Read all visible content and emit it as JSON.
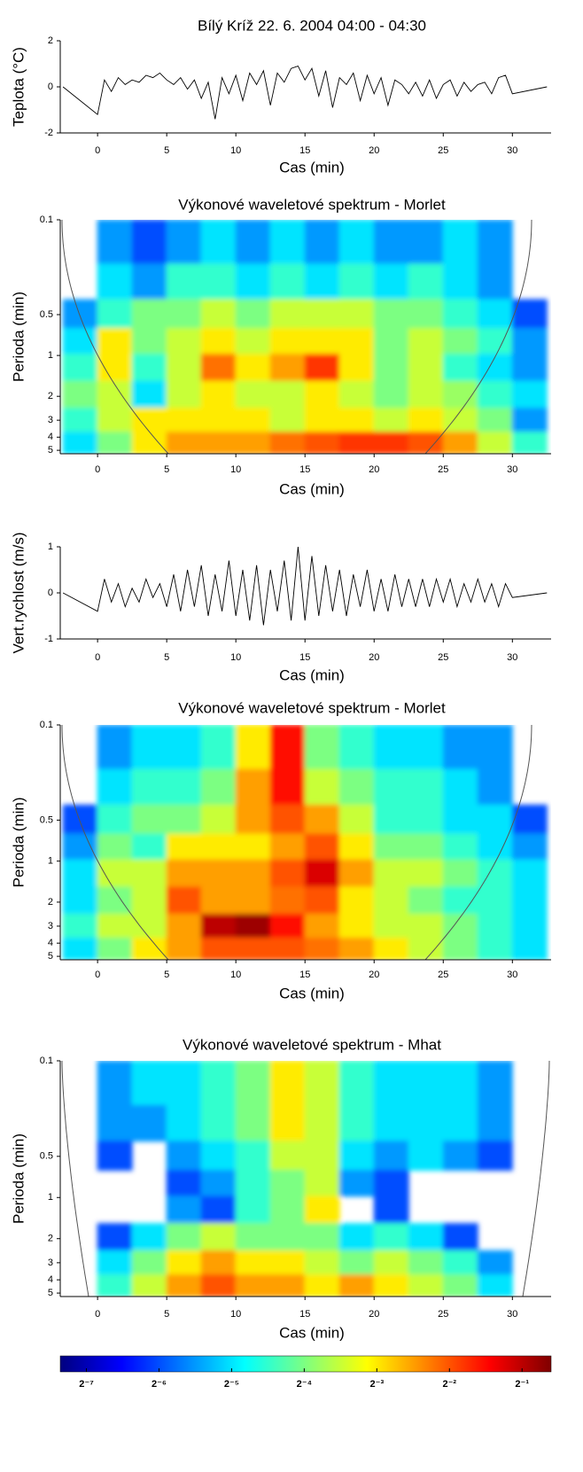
{
  "title": "Bílý Kríž  22. 6. 2004  04:00 - 04:30",
  "chart_data": [
    {
      "type": "line",
      "ylabel": "Teplota (°C)",
      "xlabel": "Cas (min)",
      "color": "#000000",
      "xlim": [
        -2.7,
        32.8
      ],
      "ylim": [
        -2,
        2
      ],
      "xticks": [
        0,
        5,
        10,
        15,
        20,
        25,
        30
      ],
      "yticks": [
        -2,
        0,
        2
      ],
      "x": [
        -2.5,
        0,
        0.5,
        1,
        1.5,
        2,
        2.5,
        3,
        3.5,
        4,
        4.5,
        5,
        5.5,
        6,
        6.5,
        7,
        7.5,
        8,
        8.5,
        9,
        9.5,
        10,
        10.5,
        11,
        11.5,
        12,
        12.5,
        13,
        13.5,
        14,
        14.5,
        15,
        15.5,
        16,
        16.5,
        17,
        17.5,
        18,
        18.5,
        19,
        19.5,
        20,
        20.5,
        21,
        21.5,
        22,
        22.5,
        23,
        23.5,
        24,
        24.5,
        25,
        25.5,
        26,
        26.5,
        27,
        27.5,
        28,
        28.5,
        29,
        29.5,
        30,
        32.5
      ],
      "values": [
        0,
        -1.2,
        0.3,
        -0.2,
        0.4,
        0.1,
        0.3,
        0.2,
        0.5,
        0.4,
        0.6,
        0.3,
        0.1,
        0.4,
        -0.1,
        0.3,
        -0.5,
        0.2,
        -1.4,
        0.4,
        -0.3,
        0.5,
        -0.6,
        0.6,
        0.1,
        0.7,
        -0.8,
        0.6,
        0.2,
        0.8,
        0.9,
        0.3,
        0.8,
        -0.4,
        0.7,
        -0.9,
        0.4,
        0.1,
        0.6,
        -0.6,
        0.5,
        -0.3,
        0.4,
        -0.8,
        0.3,
        0.1,
        -0.3,
        0.2,
        -0.4,
        0.3,
        -0.5,
        0.1,
        0.3,
        -0.4,
        0.2,
        -0.2,
        0.1,
        0.2,
        -0.3,
        0.4,
        0.5,
        -0.3,
        0
      ]
    },
    {
      "type": "heatmap",
      "title": "Výkonové waveletové spektrum - Morlet",
      "ylabel": "Perioda (min)",
      "xlabel": "Cas (min)",
      "xlim": [
        -2.7,
        32.8
      ],
      "ylim": [
        0.1,
        5.3
      ],
      "log_y": true,
      "y_inverted": true,
      "xticks": [
        0,
        5,
        10,
        15,
        20,
        25,
        30
      ],
      "yticks": [
        0.1,
        0.5,
        1,
        2,
        3,
        4,
        5
      ],
      "x": [
        -1.25,
        1.25,
        3.75,
        6.25,
        8.75,
        11.25,
        13.75,
        16.25,
        18.75,
        21.25,
        23.75,
        26.25,
        28.75,
        31.25
      ],
      "periods": [
        0.15,
        0.3,
        0.5,
        0.8,
        1.2,
        2,
        3,
        4.5
      ],
      "values": [
        [
          null,
          -5.5,
          -6,
          -5.5,
          -5,
          -5.5,
          -5,
          -5.5,
          -5,
          -5.5,
          -5.5,
          -5,
          -5.5,
          null
        ],
        [
          null,
          -5,
          -5.5,
          -4.5,
          -4.5,
          -5,
          -4.5,
          -5,
          -4.5,
          -5,
          -4.5,
          -5,
          -5.5,
          null
        ],
        [
          -5.5,
          -4.5,
          -4,
          -4,
          -3.5,
          -4,
          -3.5,
          -3.5,
          -3.5,
          -4,
          -4,
          -4.5,
          -5,
          -6
        ],
        [
          -5,
          -3,
          -4,
          -3.5,
          -3,
          -3.5,
          -3,
          -3,
          -3,
          -4,
          -3.5,
          -4,
          -4.5,
          -5.5
        ],
        [
          -4.5,
          -3,
          -4.5,
          -3.5,
          -2.2,
          -3,
          -2.5,
          -1.8,
          -3,
          -4,
          -3.5,
          -4.5,
          -5,
          -5.5
        ],
        [
          -4,
          -3.5,
          -5,
          -3.5,
          -3,
          -3.5,
          -3.5,
          -3,
          -3.5,
          -4,
          -3.5,
          -3.8,
          -4.5,
          -5
        ],
        [
          -4.5,
          -3.5,
          -3,
          -3,
          -3,
          -3,
          -3.5,
          -3,
          -3,
          -3.5,
          -3,
          -3.5,
          -4,
          -5.5
        ],
        [
          -5,
          -4,
          -3,
          -2.5,
          -2.5,
          -2.5,
          -2.2,
          -2,
          -1.8,
          -1.8,
          -2,
          -2.5,
          -3.5,
          -4.5
        ]
      ]
    },
    {
      "type": "line",
      "ylabel": "Vert.rychlost (m/s)",
      "xlabel": "Cas (min)",
      "color": "#000000",
      "xlim": [
        -2.7,
        32.8
      ],
      "ylim": [
        -1,
        1
      ],
      "xticks": [
        0,
        5,
        10,
        15,
        20,
        25,
        30
      ],
      "yticks": [
        -1,
        0,
        1
      ],
      "x": [
        -2.5,
        0,
        0.5,
        1,
        1.5,
        2,
        2.5,
        3,
        3.5,
        4,
        4.5,
        5,
        5.5,
        6,
        6.5,
        7,
        7.5,
        8,
        8.5,
        9,
        9.5,
        10,
        10.5,
        11,
        11.5,
        12,
        12.5,
        13,
        13.5,
        14,
        14.5,
        15,
        15.5,
        16,
        16.5,
        17,
        17.5,
        18,
        18.5,
        19,
        19.5,
        20,
        20.5,
        21,
        21.5,
        22,
        22.5,
        23,
        23.5,
        24,
        24.5,
        25,
        25.5,
        26,
        26.5,
        27,
        27.5,
        28,
        28.5,
        29,
        29.5,
        30,
        32.5
      ],
      "values": [
        0,
        -0.4,
        0.3,
        -0.2,
        0.2,
        -0.3,
        0.1,
        -0.2,
        0.3,
        -0.1,
        0.2,
        -0.3,
        0.4,
        -0.4,
        0.5,
        -0.3,
        0.6,
        -0.5,
        0.4,
        -0.4,
        0.7,
        -0.5,
        0.5,
        -0.6,
        0.6,
        -0.7,
        0.5,
        -0.4,
        0.7,
        -0.6,
        1.0,
        -0.6,
        0.8,
        -0.5,
        0.6,
        -0.4,
        0.5,
        -0.5,
        0.4,
        -0.3,
        0.5,
        -0.4,
        0.3,
        -0.4,
        0.4,
        -0.3,
        0.3,
        -0.3,
        0.3,
        -0.3,
        0.3,
        -0.2,
        0.3,
        -0.3,
        0.2,
        -0.2,
        0.3,
        -0.2,
        0.2,
        -0.3,
        0.2,
        -0.1,
        0
      ]
    },
    {
      "type": "heatmap",
      "title": "Výkonové waveletové spektrum - Morlet",
      "ylabel": "Perioda (min)",
      "xlabel": "Cas (min)",
      "xlim": [
        -2.7,
        32.8
      ],
      "ylim": [
        0.1,
        5.3
      ],
      "log_y": true,
      "y_inverted": true,
      "xticks": [
        0,
        5,
        10,
        15,
        20,
        25,
        30
      ],
      "yticks": [
        0.1,
        0.5,
        1,
        2,
        3,
        4,
        5
      ],
      "x": [
        -1.25,
        1.25,
        3.75,
        6.25,
        8.75,
        11.25,
        13.75,
        16.25,
        18.75,
        21.25,
        23.75,
        26.25,
        28.75,
        31.25
      ],
      "periods": [
        0.15,
        0.3,
        0.5,
        0.8,
        1.2,
        2,
        3,
        4.5
      ],
      "values": [
        [
          null,
          -5.5,
          -5,
          -5,
          -4.5,
          -3,
          -1.5,
          -4,
          -4.5,
          -5,
          -5,
          -5.5,
          -5.5,
          null
        ],
        [
          null,
          -5,
          -4.5,
          -4.5,
          -4,
          -2.5,
          -1.5,
          -3.5,
          -4,
          -4.5,
          -4.5,
          -5,
          -5.5,
          null
        ],
        [
          -6,
          -4.5,
          -4,
          -4,
          -3.5,
          -2.5,
          -2,
          -2.5,
          -3.5,
          -4.5,
          -4.5,
          -5,
          -5,
          -6
        ],
        [
          -5.5,
          -4,
          -4.5,
          -3,
          -3,
          -3,
          -2.5,
          -2,
          -3,
          -4,
          -4,
          -4.5,
          -5,
          -5.5
        ],
        [
          -5,
          -3.5,
          -3.5,
          -2.5,
          -2.5,
          -2.5,
          -2,
          -1.2,
          -2.5,
          -3.5,
          -3.5,
          -4,
          -4.5,
          -5
        ],
        [
          -5,
          -4,
          -3.5,
          -2,
          -2.5,
          -2.5,
          -2.2,
          -2,
          -3,
          -3.5,
          -4,
          -4.5,
          -4.5,
          -5
        ],
        [
          -4.5,
          -3.5,
          -3.5,
          -2.5,
          -1,
          -0.8,
          -1.5,
          -2.5,
          -3,
          -3.5,
          -3.5,
          -4,
          -4.5,
          -5
        ],
        [
          -5,
          -4,
          -3,
          -2.5,
          -2,
          -2,
          -2,
          -2.2,
          -2.5,
          -3,
          -3.5,
          -4,
          -4.5,
          -5
        ]
      ]
    },
    {
      "type": "heatmap",
      "title": "Výkonové waveletové spektrum - Mhat",
      "ylabel": "Perioda (min)",
      "xlabel": "Cas (min)",
      "xlim": [
        -2.7,
        32.8
      ],
      "ylim": [
        0.1,
        5.3
      ],
      "log_y": true,
      "y_inverted": true,
      "xticks": [
        0,
        5,
        10,
        15,
        20,
        25,
        30
      ],
      "yticks": [
        0.1,
        0.5,
        1,
        2,
        3,
        4,
        5
      ],
      "x": [
        -1.25,
        1.25,
        3.75,
        6.25,
        8.75,
        11.25,
        13.75,
        16.25,
        18.75,
        21.25,
        23.75,
        26.25,
        28.75,
        31.25
      ],
      "periods": [
        0.15,
        0.3,
        0.5,
        0.8,
        1.2,
        2,
        3,
        4.5
      ],
      "values": [
        [
          null,
          -5.5,
          -5,
          -5,
          -4.5,
          -4,
          -3,
          -3.5,
          -4.5,
          -5,
          -5,
          -5,
          -5.5,
          null
        ],
        [
          null,
          -5.5,
          -5.5,
          -5,
          -4.5,
          -4,
          -3,
          -3.5,
          -4.5,
          -5,
          -5,
          -5,
          -5.5,
          null
        ],
        [
          null,
          -6,
          null,
          -5.5,
          -5,
          -4.5,
          -3.5,
          -3.5,
          -5,
          -5.5,
          -5,
          -5.5,
          -6,
          null
        ],
        [
          null,
          null,
          null,
          -6,
          -5.5,
          -4.5,
          -4,
          -3.5,
          -5.5,
          -6,
          null,
          null,
          null,
          null
        ],
        [
          null,
          null,
          null,
          -5.5,
          -6,
          -4.5,
          -4,
          -3,
          null,
          -6,
          null,
          null,
          null,
          null
        ],
        [
          null,
          -6,
          -5,
          -4,
          -3.5,
          -4,
          -4,
          -4,
          -5,
          -4.5,
          -5,
          -6,
          null,
          null
        ],
        [
          null,
          -5,
          -4,
          -3,
          -2.5,
          -3,
          -3,
          -3.5,
          -4,
          -3.5,
          -4,
          -4.5,
          -5.5,
          null
        ],
        [
          null,
          -4.5,
          -3.5,
          -2.5,
          -2,
          -2.5,
          -2.5,
          -3,
          -2.5,
          -3,
          -3.5,
          -4,
          -5,
          null
        ]
      ]
    },
    {
      "type": "colorbar",
      "clim": [
        -7.36,
        -0.6
      ],
      "colors": [
        "#00007f",
        "#0000ff",
        "#007fff",
        "#00ffff",
        "#7fff7f",
        "#ffff00",
        "#ff7f00",
        "#ff0000",
        "#7f0000"
      ],
      "ticks": [
        {
          "value": -7,
          "label": "2⁻⁷"
        },
        {
          "value": -6,
          "label": "2⁻⁶"
        },
        {
          "value": -5,
          "label": "2⁻⁵"
        },
        {
          "value": -4,
          "label": "2⁻⁴"
        },
        {
          "value": -3,
          "label": "2⁻³"
        },
        {
          "value": -2,
          "label": "2⁻²"
        },
        {
          "value": -1,
          "label": "2⁻¹"
        }
      ]
    }
  ]
}
